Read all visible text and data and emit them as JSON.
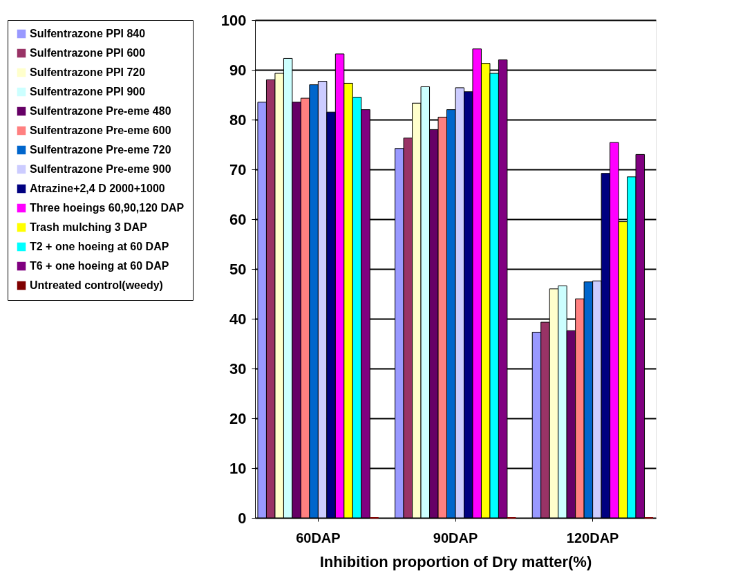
{
  "chart_data": {
    "type": "bar",
    "xlabel": "Inhibition proportion of Dry matter(%)",
    "categories": [
      "60DAP",
      "90DAP",
      "120DAP"
    ],
    "ylim": [
      0,
      100
    ],
    "yticks": [
      0,
      10,
      20,
      30,
      40,
      50,
      60,
      70,
      80,
      90,
      100
    ],
    "grid": "y",
    "legend": "left",
    "series": [
      {
        "name": "Sulfentrazone PPI 840",
        "color": "#9999ff",
        "values": [
          83.5,
          74.2,
          37.3
        ]
      },
      {
        "name": "Sulfentrazone PPI 600",
        "color": "#993366",
        "values": [
          88,
          76.3,
          39.3
        ]
      },
      {
        "name": "Sulfentrazone PPI 720",
        "color": "#ffffcc",
        "values": [
          89.3,
          83.3,
          46
        ]
      },
      {
        "name": "Sulfentrazone PPI 900",
        "color": "#ccffff",
        "values": [
          92.3,
          86.6,
          46.6
        ]
      },
      {
        "name": "Sulfentrazone Pre-eme 480",
        "color": "#660066",
        "values": [
          83.5,
          78,
          37.6
        ]
      },
      {
        "name": "Sulfentrazone Pre-eme 600",
        "color": "#ff8080",
        "values": [
          84.3,
          80.5,
          44
        ]
      },
      {
        "name": "Sulfentrazone Pre-eme 720",
        "color": "#0066cc",
        "values": [
          87,
          82,
          47.4
        ]
      },
      {
        "name": "Sulfentrazone Pre-eme 900",
        "color": "#ccccff",
        "values": [
          87.7,
          86.4,
          47.6
        ]
      },
      {
        "name": "Atrazine+2,4 D 2000+1000",
        "color": "#000080",
        "values": [
          81.5,
          85.6,
          69.2
        ]
      },
      {
        "name": "Three hoeings 60,90,120 DAP",
        "color": "#ff00ff",
        "values": [
          93.2,
          94.2,
          75.4
        ]
      },
      {
        "name": "Trash mulching 3 DAP",
        "color": "#ffff00",
        "values": [
          87.3,
          91.3,
          59.5
        ]
      },
      {
        "name": "T2 + one hoeing at 60 DAP",
        "color": "#00ffff",
        "values": [
          84.5,
          89.3,
          68.5
        ]
      },
      {
        "name": "T6 + one hoeing at 60 DAP",
        "color": "#800080",
        "values": [
          82,
          92,
          73
        ]
      },
      {
        "name": "Untreated control(weedy)",
        "color": "#800000",
        "values": [
          0,
          0,
          0
        ]
      }
    ]
  }
}
